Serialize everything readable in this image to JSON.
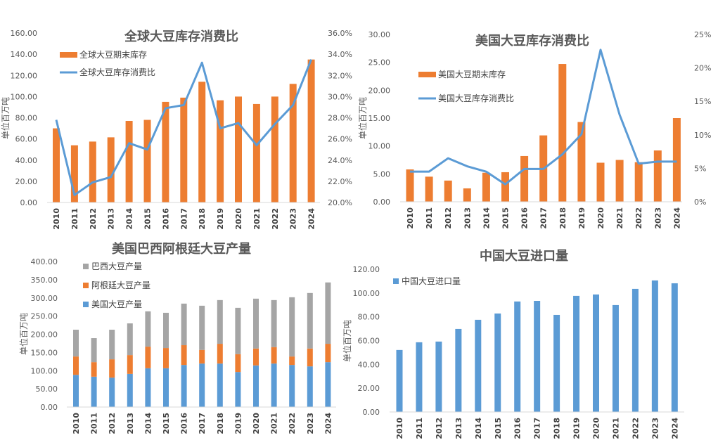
{
  "colors": {
    "orange": "#ED7D31",
    "blue": "#5B9BD5",
    "gray": "#A5A5A5",
    "axis": "#D9D9D9",
    "text": "#595959"
  },
  "chart_data": [
    {
      "type": "bar+line",
      "title": "全球大豆库存消费比",
      "ylabel": "单位百万吨",
      "categories": [
        "2010",
        "2011",
        "2012",
        "2013",
        "2014",
        "2015",
        "2016",
        "2017",
        "2018",
        "2019",
        "2020",
        "2021",
        "2022",
        "2023",
        "2024"
      ],
      "ylim": [
        0,
        160
      ],
      "yticks": [
        "0.00",
        "20.00",
        "40.00",
        "60.00",
        "80.00",
        "100.00",
        "120.00",
        "140.00",
        "160.00"
      ],
      "y2lim": [
        20,
        36
      ],
      "y2ticks": [
        "20.0%",
        "22.0%",
        "24.0%",
        "26.0%",
        "28.0%",
        "30.0%",
        "32.0%",
        "34.0%",
        "36.0%"
      ],
      "legend_position": "top-left",
      "series": [
        {
          "name": "全球大豆期末库存",
          "kind": "bar",
          "axis": "left",
          "color": "#ED7D31",
          "values": [
            70,
            54,
            57.5,
            61.5,
            77,
            78,
            95,
            99,
            114,
            96.5,
            100,
            93,
            100,
            112,
            135
          ]
        },
        {
          "name": "全球大豆库存消费比",
          "kind": "line",
          "axis": "right",
          "unit": "%",
          "color": "#5B9BD5",
          "values": [
            27.8,
            20.7,
            21.9,
            22.4,
            25.6,
            25.0,
            28.9,
            29.2,
            33.2,
            27.0,
            27.5,
            25.4,
            27.4,
            29.2,
            33.5
          ]
        }
      ]
    },
    {
      "type": "bar+line",
      "title": "美国大豆库存消费比",
      "ylabel": "单位百万吨",
      "categories": [
        "2010",
        "2011",
        "2012",
        "2013",
        "2014",
        "2015",
        "2016",
        "2017",
        "2018",
        "2019",
        "2020",
        "2021",
        "2022",
        "2023",
        "2024"
      ],
      "ylim": [
        0,
        30
      ],
      "yticks": [
        "0.00",
        "5.00",
        "10.00",
        "15.00",
        "20.00",
        "25.00",
        "30.00"
      ],
      "y2lim": [
        0,
        25
      ],
      "y2ticks": [
        "0%",
        "5%",
        "10%",
        "15%",
        "20%",
        "25%"
      ],
      "legend_position": "top-left",
      "series": [
        {
          "name": "美国大豆期末库存",
          "kind": "bar",
          "axis": "left",
          "color": "#ED7D31",
          "values": [
            5.8,
            4.5,
            3.8,
            2.4,
            5.2,
            5.3,
            8.2,
            11.9,
            24.7,
            14.3,
            7.0,
            7.5,
            7.1,
            9.2,
            15.0
          ]
        },
        {
          "name": "美国大豆库存消费比",
          "kind": "line",
          "axis": "right",
          "unit": "%",
          "color": "#5B9BD5",
          "values": [
            4.5,
            4.5,
            6.5,
            5.3,
            4.5,
            2.6,
            4.9,
            4.9,
            7.1,
            10.1,
            22.7,
            13.0,
            5.7,
            6.0,
            6.0
          ]
        }
      ]
    },
    {
      "type": "stacked-bar",
      "title": "美国巴西阿根廷大豆产量",
      "ylabel": "单位百万吨",
      "categories": [
        "2010",
        "2011",
        "2012",
        "2013",
        "2014",
        "2015",
        "2016",
        "2017",
        "2018",
        "2019",
        "2020",
        "2021",
        "2022",
        "2023",
        "2024"
      ],
      "ylim": [
        0,
        400
      ],
      "yticks": [
        "0.00",
        "50.00",
        "100.00",
        "150.00",
        "200.00",
        "250.00",
        "300.00",
        "350.00",
        "400.00"
      ],
      "legend_position": "top-left",
      "series": [
        {
          "name": "美国大豆产量",
          "color": "#5B9BD5",
          "values": [
            88.5,
            83.4,
            80.8,
            91.1,
            106.6,
            106.6,
            115.7,
            119.5,
            119.5,
            96.3,
            114.4,
            119.5,
            115.7,
            111.8,
            123.4
          ]
        },
        {
          "name": "阿根廷大豆产量",
          "color": "#ED7D31",
          "values": [
            50.4,
            40.0,
            50.4,
            51.7,
            59.4,
            55.6,
            54.3,
            37.5,
            54.3,
            49.1,
            46.5,
            45.3,
            23.2,
            49.1,
            50.4
          ]
        },
        {
          "name": "巴西大豆产量",
          "color": "#A5A5A5",
          "values": [
            73.7,
            65.9,
            81.4,
            87.2,
            97.0,
            96.9,
            114.3,
            121.5,
            120.2,
            127.3,
            137.0,
            129.2,
            162.9,
            152.5,
            168.7
          ]
        }
      ]
    },
    {
      "type": "bar",
      "title": "中国大豆进口量",
      "ylabel": "单位百万吨",
      "categories": [
        "2010",
        "2011",
        "2012",
        "2013",
        "2014",
        "2015",
        "2016",
        "2017",
        "2018",
        "2019",
        "2020",
        "2021",
        "2022",
        "2023",
        "2024"
      ],
      "ylim": [
        0,
        120
      ],
      "yticks": [
        "0.00",
        "20.00",
        "40.00",
        "60.00",
        "80.00",
        "100.00",
        "120.00"
      ],
      "legend_position": "top-left",
      "series": [
        {
          "name": "中国大豆进口量",
          "color": "#5B9BD5",
          "values": [
            52.1,
            58.6,
            59.2,
            69.8,
            77.5,
            82.8,
            92.9,
            93.4,
            81.6,
            97.6,
            98.8,
            89.9,
            103.5,
            110.6,
            108.2
          ]
        }
      ]
    }
  ]
}
